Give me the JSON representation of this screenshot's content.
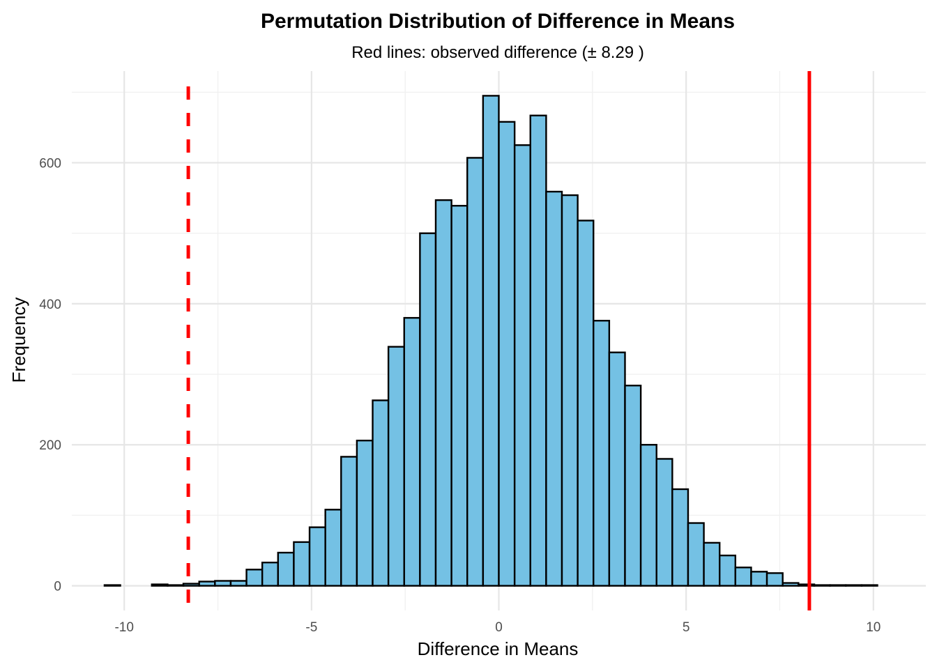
{
  "chart_data": {
    "type": "bar",
    "title": "Permutation Distribution of Difference in Means",
    "subtitle": "Red lines: observed difference (± 8.29 )",
    "xlabel": "Difference in Means",
    "ylabel": "Frequency",
    "xlim": [
      -11.4,
      11.4
    ],
    "ylim": [
      -35,
      730
    ],
    "x_ticks": [
      -10,
      -5,
      0,
      5,
      10
    ],
    "y_ticks": [
      0,
      200,
      400,
      600
    ],
    "grid": true,
    "bin_width": 0.4211,
    "bin_centers": [
      -10.316,
      -9.895,
      -9.474,
      -9.053,
      -8.632,
      -8.211,
      -7.789,
      -7.368,
      -6.947,
      -6.526,
      -6.105,
      -5.684,
      -5.263,
      -4.842,
      -4.421,
      -4.0,
      -3.579,
      -3.158,
      -2.737,
      -2.316,
      -1.895,
      -1.474,
      -1.053,
      -0.632,
      -0.211,
      0.211,
      0.632,
      1.053,
      1.474,
      1.895,
      2.316,
      2.737,
      3.158,
      3.579,
      4.0,
      4.421,
      4.842,
      5.263,
      5.684,
      6.105,
      6.526,
      6.947,
      7.368,
      7.789,
      8.211,
      8.632,
      9.053,
      9.474,
      9.895
    ],
    "values": [
      1,
      0,
      0,
      2,
      1,
      3,
      6,
      7,
      7,
      23,
      33,
      47,
      62,
      83,
      108,
      183,
      206,
      263,
      339,
      380,
      500,
      547,
      539,
      607,
      695,
      658,
      625,
      667,
      559,
      554,
      518,
      376,
      331,
      284,
      200,
      180,
      137,
      89,
      61,
      43,
      26,
      20,
      18,
      4,
      2,
      1,
      1,
      1,
      1
    ],
    "fill_color": "#74C1E4",
    "edge_color": "#000000",
    "reference_lines": [
      {
        "x": -8.29,
        "color": "#FF0000",
        "style": "dashed"
      },
      {
        "x": 8.29,
        "color": "#FF0000",
        "style": "solid"
      }
    ]
  }
}
